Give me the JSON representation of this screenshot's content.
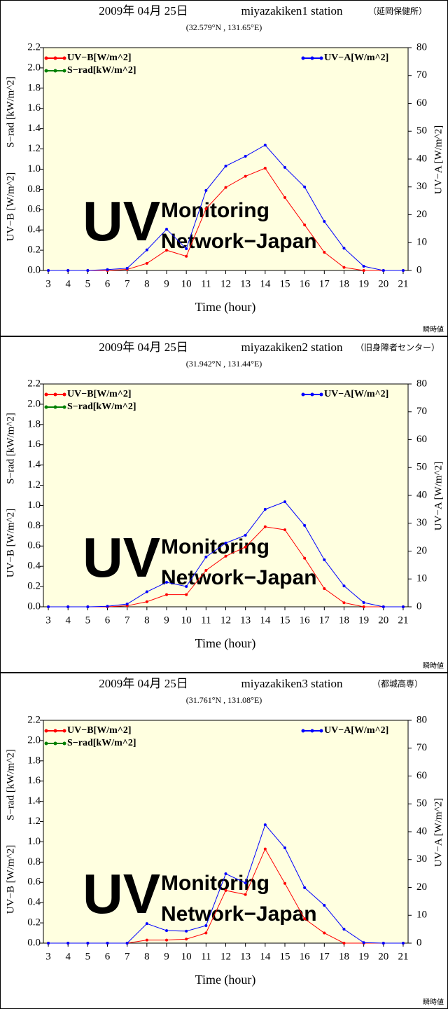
{
  "chart_data": [
    {
      "type": "line",
      "date": "2009年 04月 25日",
      "station": "miyazakiken1 station",
      "station_name": "（延岡保健所）",
      "subtitle": "(32.579°N , 131.65°E)",
      "xlabel": "Time (hour)",
      "ylabel": "UV−B [W/m^2]",
      "ylabel_srad": "S−rad [kW/m^2]",
      "y2label": "UV−A [W/m^2]",
      "note": "瞬時値",
      "watermark": [
        "UV",
        "Monitoring",
        "Network−Japan"
      ],
      "x": [
        3,
        4,
        5,
        6,
        7,
        8,
        9,
        10,
        11,
        12,
        13,
        14,
        15,
        16,
        17,
        18,
        19,
        20,
        21
      ],
      "xlim": [
        2.75,
        21.25
      ],
      "xticks": [
        3,
        4,
        5,
        6,
        7,
        8,
        9,
        10,
        11,
        12,
        13,
        14,
        15,
        16,
        17,
        18,
        19,
        20,
        21
      ],
      "ylim": [
        0,
        2.2
      ],
      "yticks": [
        {
          "value": 0,
          "label": "0.0"
        },
        0.2,
        0.4,
        0.6,
        0.8,
        {
          "value": 1,
          "label": "1.0"
        },
        1.2,
        1.4,
        1.6,
        1.8,
        {
          "value": 2,
          "label": "2.0"
        },
        2.2
      ],
      "y2lim": [
        0,
        80
      ],
      "y2ticks": [
        0,
        10,
        20,
        30,
        40,
        50,
        60,
        70,
        80
      ],
      "series": [
        {
          "name": "UV−B[W/m^2]",
          "color": "#ff0000",
          "values": [
            0,
            0,
            0,
            0,
            0.01,
            0.07,
            0.2,
            0.14,
            0.61,
            0.82,
            0.93,
            1.01,
            0.72,
            0.45,
            0.18,
            0.03,
            0,
            0,
            0
          ]
        },
        {
          "name": "S−rad[kW/m^2]",
          "color": "#008000",
          "values": [
            null,
            null,
            null,
            null,
            null,
            null,
            null,
            null,
            null,
            null,
            null,
            null,
            null,
            null,
            null,
            null,
            null,
            null,
            null
          ]
        },
        {
          "name": "UV−A[W/m^2]",
          "color": "#0000ff",
          "axis": "y2",
          "values": [
            0,
            0,
            0,
            0.3,
            0.8,
            7.4,
            14.8,
            7.8,
            28.7,
            37.5,
            41,
            45,
            37,
            30,
            17.6,
            8,
            1.5,
            0,
            0
          ]
        }
      ]
    },
    {
      "type": "line",
      "date": "2009年 04月 25日",
      "station": "miyazakiken2 station",
      "station_name": "（旧身障者センター）",
      "subtitle": "(31.942°N , 131.44°E)",
      "xlabel": "Time (hour)",
      "ylabel": "UV−B [W/m^2]",
      "ylabel_srad": "S−rad [kW/m^2]",
      "y2label": "UV−A [W/m^2]",
      "note": "瞬時値",
      "watermark": [
        "UV",
        "Monitoring",
        "Network−Japan"
      ],
      "x": [
        3,
        4,
        5,
        6,
        7,
        8,
        9,
        10,
        11,
        12,
        13,
        14,
        15,
        16,
        17,
        18,
        19,
        20,
        21
      ],
      "xlim": [
        2.75,
        21.25
      ],
      "xticks": [
        3,
        4,
        5,
        6,
        7,
        8,
        9,
        10,
        11,
        12,
        13,
        14,
        15,
        16,
        17,
        18,
        19,
        20,
        21
      ],
      "ylim": [
        0,
        2.2
      ],
      "yticks": [
        {
          "value": 0,
          "label": "0.0"
        },
        0.2,
        0.4,
        0.6,
        0.8,
        {
          "value": 1,
          "label": "1.0"
        },
        1.2,
        1.4,
        1.6,
        1.8,
        {
          "value": 2,
          "label": "2.0"
        },
        2.2
      ],
      "y2lim": [
        0,
        80
      ],
      "y2ticks": [
        0,
        10,
        20,
        30,
        40,
        50,
        60,
        70,
        80
      ],
      "series": [
        {
          "name": "UV−B[W/m^2]",
          "color": "#ff0000",
          "values": [
            0,
            0,
            0,
            0,
            0.01,
            0.05,
            0.12,
            0.12,
            0.36,
            0.5,
            0.59,
            0.79,
            0.76,
            0.48,
            0.18,
            0.04,
            0,
            0,
            0
          ]
        },
        {
          "name": "S−rad[kW/m^2]",
          "color": "#008000",
          "values": [
            null,
            null,
            null,
            null,
            null,
            null,
            null,
            null,
            null,
            null,
            null,
            null,
            null,
            null,
            null,
            null,
            null,
            null,
            null
          ]
        },
        {
          "name": "UV−A[W/m^2]",
          "color": "#0000ff",
          "axis": "y2",
          "values": [
            0,
            0,
            0,
            0.2,
            1,
            5.4,
            8.8,
            7.3,
            17.9,
            22.9,
            25.7,
            35,
            37.7,
            29.2,
            16.9,
            7.5,
            1.5,
            0,
            0
          ]
        }
      ]
    },
    {
      "type": "line",
      "date": "2009年 04月 25日",
      "station": "miyazakiken3 station",
      "station_name": "（都城高専）",
      "subtitle": "(31.761°N , 131.08°E)",
      "xlabel": "Time (hour)",
      "ylabel": "UV−B [W/m^2]",
      "ylabel_srad": "S−rad [kW/m^2]",
      "y2label": "UV−A [W/m^2]",
      "note": "瞬時値",
      "watermark": [
        "UV",
        "Monitoring",
        "Network−Japan"
      ],
      "x": [
        3,
        4,
        5,
        6,
        7,
        8,
        9,
        10,
        11,
        12,
        13,
        14,
        15,
        16,
        17,
        18,
        19,
        20,
        21
      ],
      "xlim": [
        2.75,
        21.25
      ],
      "xticks": [
        3,
        4,
        5,
        6,
        7,
        8,
        9,
        10,
        11,
        12,
        13,
        14,
        15,
        16,
        17,
        18,
        19,
        20,
        21
      ],
      "ylim": [
        0,
        2.2
      ],
      "yticks": [
        {
          "value": 0,
          "label": "0.0"
        },
        0.2,
        0.4,
        0.6,
        0.8,
        {
          "value": 1,
          "label": "1.0"
        },
        1.2,
        1.4,
        1.6,
        1.8,
        {
          "value": 2,
          "label": "2.0"
        },
        2.2
      ],
      "y2lim": [
        0,
        80
      ],
      "y2ticks": [
        0,
        10,
        20,
        30,
        40,
        50,
        60,
        70,
        80
      ],
      "series": [
        {
          "name": "UV−B[W/m^2]",
          "color": "#ff0000",
          "values": [
            0,
            0,
            0,
            0,
            0,
            0.03,
            0.03,
            0.04,
            0.1,
            0.52,
            0.48,
            0.93,
            0.59,
            0.24,
            0.1,
            0,
            0,
            0,
            0
          ]
        },
        {
          "name": "S−rad[kW/m^2]",
          "color": "#008000",
          "values": [
            null,
            null,
            null,
            null,
            null,
            null,
            null,
            null,
            null,
            null,
            null,
            null,
            null,
            null,
            null,
            null,
            null,
            null,
            null
          ]
        },
        {
          "name": "UV−A[W/m^2]",
          "color": "#0000ff",
          "axis": "y2",
          "values": [
            0,
            0,
            0,
            0,
            0,
            7,
            4.5,
            4.3,
            6.3,
            24.9,
            21.6,
            42.5,
            34.2,
            19.9,
            13.6,
            5,
            0.2,
            0,
            0
          ]
        }
      ]
    }
  ]
}
